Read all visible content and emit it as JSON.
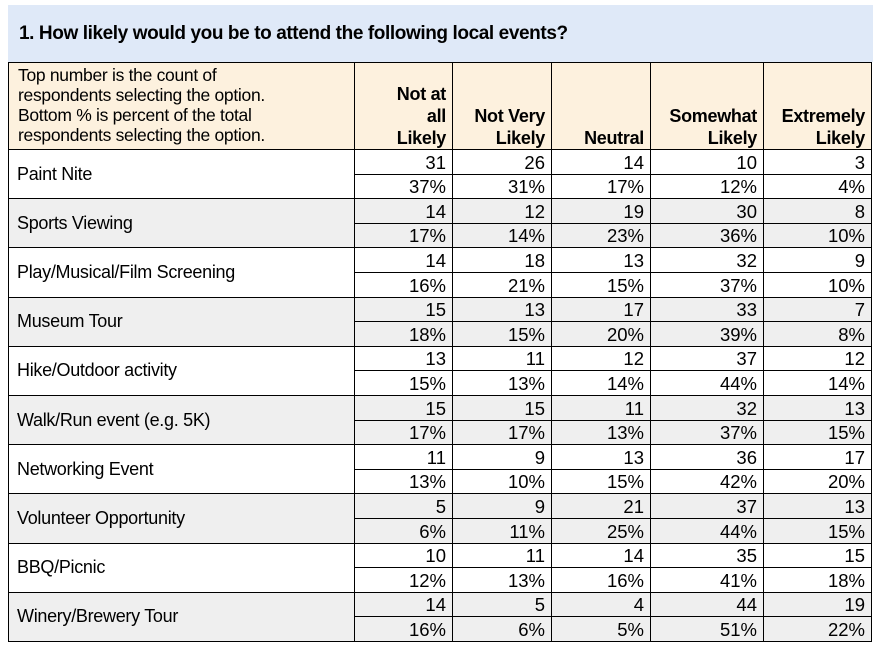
{
  "title": "1. How likely would you be to attend the following local events?",
  "table": {
    "note": "Top number is the count of respondents selecting the option. Bottom % is percent of the total respondents selecting the option.",
    "note_lines": [
      "Top number is the count of",
      "respondents selecting the option.",
      "Bottom % is percent of the total",
      "respondents selecting the option."
    ],
    "columns": [
      {
        "lines": [
          "Not at",
          "all",
          "Likely"
        ]
      },
      {
        "lines": [
          "Not Very",
          "Likely"
        ]
      },
      {
        "lines": [
          "Neutral"
        ]
      },
      {
        "lines": [
          "Somewhat",
          "Likely"
        ]
      },
      {
        "lines": [
          "Extremely",
          "Likely"
        ]
      }
    ],
    "rows": [
      {
        "label": "Paint Nite",
        "counts": [
          "31",
          "26",
          "14",
          "10",
          "3"
        ],
        "percents": [
          "37%",
          "31%",
          "17%",
          "12%",
          "4%"
        ]
      },
      {
        "label": "Sports Viewing",
        "counts": [
          "14",
          "12",
          "19",
          "30",
          "8"
        ],
        "percents": [
          "17%",
          "14%",
          "23%",
          "36%",
          "10%"
        ]
      },
      {
        "label": "Play/Musical/Film Screening",
        "counts": [
          "14",
          "18",
          "13",
          "32",
          "9"
        ],
        "percents": [
          "16%",
          "21%",
          "15%",
          "37%",
          "10%"
        ]
      },
      {
        "label": "Museum Tour",
        "counts": [
          "15",
          "13",
          "17",
          "33",
          "7"
        ],
        "percents": [
          "18%",
          "15%",
          "20%",
          "39%",
          "8%"
        ]
      },
      {
        "label": "Hike/Outdoor activity",
        "counts": [
          "13",
          "11",
          "12",
          "37",
          "12"
        ],
        "percents": [
          "15%",
          "13%",
          "14%",
          "44%",
          "14%"
        ]
      },
      {
        "label": "Walk/Run event (e.g. 5K)",
        "counts": [
          "15",
          "15",
          "11",
          "32",
          "13"
        ],
        "percents": [
          "17%",
          "17%",
          "13%",
          "37%",
          "15%"
        ]
      },
      {
        "label": "Networking Event",
        "counts": [
          "11",
          "9",
          "13",
          "36",
          "17"
        ],
        "percents": [
          "13%",
          "10%",
          "15%",
          "42%",
          "20%"
        ]
      },
      {
        "label": "Volunteer Opportunity",
        "counts": [
          "5",
          "9",
          "21",
          "37",
          "13"
        ],
        "percents": [
          "6%",
          "11%",
          "25%",
          "44%",
          "15%"
        ]
      },
      {
        "label": "BBQ/Picnic",
        "counts": [
          "10",
          "11",
          "14",
          "35",
          "15"
        ],
        "percents": [
          "12%",
          "13%",
          "16%",
          "41%",
          "18%"
        ]
      },
      {
        "label": "Winery/Brewery Tour",
        "counts": [
          "14",
          "5",
          "4",
          "44",
          "19"
        ],
        "percents": [
          "16%",
          "6%",
          "5%",
          "51%",
          "22%"
        ]
      }
    ]
  },
  "colors": {
    "title_bg": "#dfe9f8",
    "header_bg": "#fdf1de",
    "shade_row_bg": "#efefef",
    "plain_row_bg": "#ffffff"
  }
}
